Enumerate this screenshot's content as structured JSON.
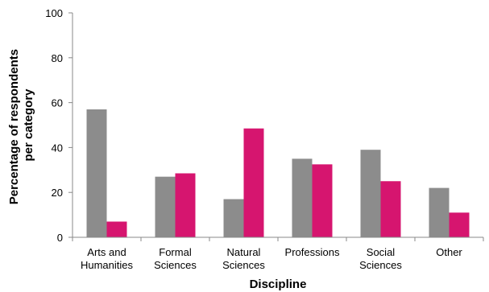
{
  "chart_data": {
    "type": "bar",
    "title": "",
    "xlabel": "Discipline",
    "ylabel": "Percentage of respondents per category",
    "ylim": [
      0,
      100
    ],
    "yticks": [
      0,
      20,
      40,
      60,
      80,
      100
    ],
    "grid": false,
    "legend": "none",
    "categories": [
      [
        "Arts and",
        "Humanities"
      ],
      [
        "Formal",
        "Sciences"
      ],
      [
        "Natural",
        "Sciences"
      ],
      [
        "Professions"
      ],
      [
        "Social",
        "Sciences"
      ],
      [
        "Other"
      ]
    ],
    "series": [
      {
        "color": "#8c8c8c",
        "values": [
          57,
          27,
          17,
          35,
          39,
          22
        ]
      },
      {
        "color": "#d6156f",
        "values": [
          7,
          28.5,
          48.5,
          32.5,
          25,
          11
        ]
      }
    ]
  }
}
